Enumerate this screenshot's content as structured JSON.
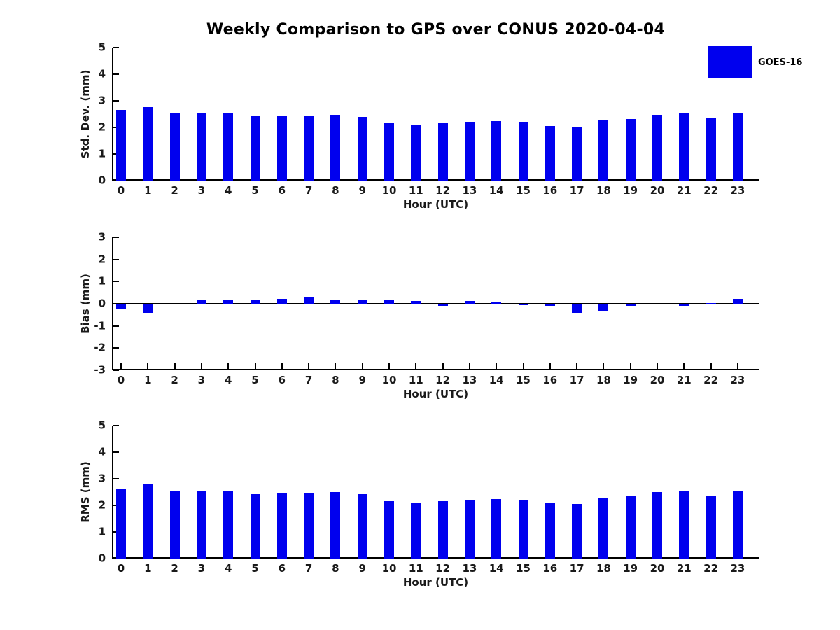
{
  "title": "Weekly Comparison to GPS over CONUS 2020-04-04",
  "legend": {
    "label": "GOES-16",
    "color": "#0000EE",
    "position": "top-right"
  },
  "chart_data": [
    {
      "type": "bar",
      "name": "std-dev-panel",
      "series_name": "GOES-16",
      "ylabel": "Std. Dev. (mm)",
      "xlabel": "Hour (UTC)",
      "bar_color": "#0000EE",
      "ylim": [
        0,
        5
      ],
      "yticks": [
        0,
        1,
        2,
        3,
        4,
        5
      ],
      "grid": false,
      "categories": [
        0,
        1,
        2,
        3,
        4,
        5,
        6,
        7,
        8,
        9,
        10,
        11,
        12,
        13,
        14,
        15,
        16,
        17,
        18,
        19,
        20,
        21,
        22,
        23
      ],
      "values": [
        2.65,
        2.77,
        2.52,
        2.55,
        2.55,
        2.42,
        2.44,
        2.42,
        2.48,
        2.4,
        2.18,
        2.07,
        2.17,
        2.2,
        2.24,
        2.2,
        2.05,
        2.0,
        2.26,
        2.32,
        2.48,
        2.55,
        2.36,
        2.52
      ]
    },
    {
      "type": "bar",
      "name": "bias-panel",
      "series_name": "GOES-16",
      "ylabel": "Bias (mm)",
      "xlabel": "Hour (UTC)",
      "bar_color": "#0000EE",
      "ylim": [
        -3,
        3
      ],
      "yticks": [
        -3,
        -2,
        -1,
        0,
        1,
        2,
        3
      ],
      "grid": false,
      "categories": [
        0,
        1,
        2,
        3,
        4,
        5,
        6,
        7,
        8,
        9,
        10,
        11,
        12,
        13,
        14,
        15,
        16,
        17,
        18,
        19,
        20,
        21,
        22,
        23
      ],
      "values": [
        -0.22,
        -0.41,
        -0.02,
        0.18,
        0.16,
        0.17,
        0.23,
        0.32,
        0.18,
        0.15,
        0.15,
        0.12,
        -0.1,
        0.12,
        0.1,
        -0.05,
        -0.08,
        -0.4,
        -0.34,
        -0.08,
        -0.03,
        -0.08,
        0.04,
        0.22
      ]
    },
    {
      "type": "bar",
      "name": "rms-panel",
      "series_name": "GOES-16",
      "ylabel": "RMS (mm)",
      "xlabel": "Hour (UTC)",
      "bar_color": "#0000EE",
      "ylim": [
        0,
        5
      ],
      "yticks": [
        0,
        1,
        2,
        3,
        4,
        5
      ],
      "grid": false,
      "categories": [
        0,
        1,
        2,
        3,
        4,
        5,
        6,
        7,
        8,
        9,
        10,
        11,
        12,
        13,
        14,
        15,
        16,
        17,
        18,
        19,
        20,
        21,
        22,
        23
      ],
      "values": [
        2.64,
        2.78,
        2.53,
        2.56,
        2.56,
        2.43,
        2.46,
        2.45,
        2.51,
        2.41,
        2.17,
        2.08,
        2.17,
        2.22,
        2.24,
        2.21,
        2.07,
        2.06,
        2.3,
        2.35,
        2.49,
        2.54,
        2.38,
        2.53
      ]
    }
  ]
}
